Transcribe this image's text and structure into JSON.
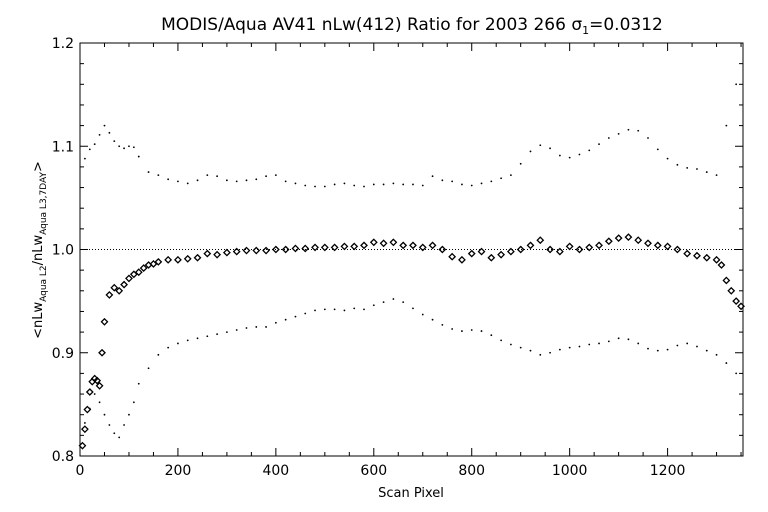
{
  "chart_data": {
    "type": "scatter",
    "title_text": "MODIS/Aqua AV41 nLw(412) Ratio for 2003 266 ",
    "title_sigma": "σ",
    "title_sigma_sub": "1",
    "title_value": "=0.0312",
    "xlabel": "Scan Pixel",
    "ylabel": {
      "prefix": "<nLw",
      "sub1": "Aqua L2",
      "middle": "/nLw",
      "sub2": "Aqua L3,7DAY",
      "suffix": ">"
    },
    "xlim": [
      0,
      1354
    ],
    "ylim": [
      0.8,
      1.2
    ],
    "x_ticks": [
      0,
      200,
      400,
      600,
      800,
      1000,
      1200
    ],
    "x_tick_labels": [
      "0",
      "200",
      "400",
      "600",
      "800",
      "1000",
      "1200"
    ],
    "y_ticks": [
      0.8,
      0.9,
      1.0,
      1.1,
      1.2
    ],
    "y_tick_labels": [
      "0.8",
      "0.9",
      "1.0",
      "1.1",
      "1.2"
    ],
    "reference_line": 1.0,
    "series": [
      {
        "role": "mean",
        "marker": "diamond",
        "x": [
          5,
          10,
          15,
          20,
          25,
          30,
          35,
          40,
          45,
          50,
          60,
          70,
          80,
          90,
          100,
          110,
          120,
          130,
          140,
          150,
          160,
          180,
          200,
          220,
          240,
          260,
          280,
          300,
          320,
          340,
          360,
          380,
          400,
          420,
          440,
          460,
          480,
          500,
          520,
          540,
          560,
          580,
          600,
          620,
          640,
          660,
          680,
          700,
          720,
          740,
          760,
          780,
          800,
          820,
          840,
          860,
          880,
          900,
          920,
          940,
          960,
          980,
          1000,
          1020,
          1040,
          1060,
          1080,
          1100,
          1120,
          1140,
          1160,
          1180,
          1200,
          1220,
          1240,
          1260,
          1280,
          1300,
          1310,
          1320,
          1330,
          1340,
          1350
        ],
        "y": [
          0.81,
          0.826,
          0.845,
          0.862,
          0.872,
          0.875,
          0.873,
          0.868,
          0.9,
          0.93,
          0.956,
          0.963,
          0.96,
          0.966,
          0.972,
          0.976,
          0.978,
          0.982,
          0.985,
          0.986,
          0.988,
          0.99,
          0.99,
          0.991,
          0.992,
          0.996,
          0.995,
          0.997,
          0.998,
          0.999,
          0.999,
          0.999,
          1.0,
          1.0,
          1.001,
          1.001,
          1.002,
          1.002,
          1.002,
          1.003,
          1.003,
          1.004,
          1.007,
          1.006,
          1.007,
          1.004,
          1.004,
          1.002,
          1.004,
          1.0,
          0.993,
          0.99,
          0.996,
          0.998,
          0.992,
          0.995,
          0.998,
          1.0,
          1.004,
          1.009,
          1.0,
          0.998,
          1.003,
          1.0,
          1.002,
          1.004,
          1.008,
          1.011,
          1.012,
          1.009,
          1.006,
          1.004,
          1.003,
          1.0,
          0.996,
          0.994,
          0.992,
          0.99,
          0.985,
          0.97,
          0.96,
          0.95,
          0.945
        ]
      },
      {
        "role": "upper",
        "marker": "dot",
        "x": [
          10,
          20,
          30,
          40,
          50,
          60,
          70,
          80,
          90,
          100,
          110,
          120,
          140,
          160,
          180,
          200,
          220,
          240,
          260,
          280,
          300,
          320,
          340,
          360,
          380,
          400,
          420,
          440,
          460,
          480,
          500,
          520,
          540,
          560,
          580,
          600,
          620,
          640,
          660,
          680,
          700,
          720,
          740,
          760,
          780,
          800,
          820,
          840,
          860,
          880,
          900,
          920,
          940,
          960,
          980,
          1000,
          1020,
          1040,
          1060,
          1080,
          1100,
          1120,
          1140,
          1160,
          1180,
          1200,
          1220,
          1240,
          1260,
          1280,
          1300,
          1320,
          1340
        ],
        "y": [
          1.088,
          1.097,
          1.102,
          1.111,
          1.12,
          1.113,
          1.105,
          1.1,
          1.098,
          1.1,
          1.099,
          1.09,
          1.075,
          1.072,
          1.068,
          1.066,
          1.064,
          1.067,
          1.072,
          1.071,
          1.067,
          1.066,
          1.067,
          1.068,
          1.071,
          1.072,
          1.066,
          1.064,
          1.062,
          1.061,
          1.061,
          1.063,
          1.064,
          1.062,
          1.061,
          1.063,
          1.063,
          1.064,
          1.063,
          1.063,
          1.062,
          1.071,
          1.067,
          1.066,
          1.063,
          1.062,
          1.064,
          1.066,
          1.069,
          1.072,
          1.083,
          1.095,
          1.101,
          1.098,
          1.091,
          1.089,
          1.092,
          1.096,
          1.102,
          1.108,
          1.112,
          1.116,
          1.115,
          1.108,
          1.097,
          1.088,
          1.082,
          1.079,
          1.078,
          1.075,
          1.072,
          1.12,
          1.16
        ]
      },
      {
        "role": "lower",
        "marker": "dot",
        "x": [
          10,
          20,
          30,
          40,
          50,
          60,
          70,
          80,
          90,
          100,
          110,
          120,
          140,
          160,
          180,
          200,
          220,
          240,
          260,
          280,
          300,
          320,
          340,
          360,
          380,
          400,
          420,
          440,
          460,
          480,
          500,
          520,
          540,
          560,
          580,
          600,
          620,
          640,
          660,
          680,
          700,
          720,
          740,
          760,
          780,
          800,
          820,
          840,
          860,
          880,
          900,
          920,
          940,
          960,
          980,
          1000,
          1020,
          1040,
          1060,
          1080,
          1100,
          1120,
          1140,
          1160,
          1180,
          1200,
          1220,
          1240,
          1260,
          1280,
          1300,
          1320,
          1340
        ],
        "y": [
          0.832,
          0.846,
          0.86,
          0.852,
          0.84,
          0.83,
          0.822,
          0.818,
          0.83,
          0.84,
          0.852,
          0.87,
          0.885,
          0.898,
          0.905,
          0.909,
          0.912,
          0.914,
          0.916,
          0.918,
          0.92,
          0.922,
          0.924,
          0.925,
          0.925,
          0.929,
          0.932,
          0.935,
          0.938,
          0.941,
          0.942,
          0.942,
          0.941,
          0.943,
          0.942,
          0.946,
          0.949,
          0.952,
          0.949,
          0.943,
          0.937,
          0.932,
          0.927,
          0.923,
          0.921,
          0.922,
          0.921,
          0.917,
          0.912,
          0.908,
          0.905,
          0.902,
          0.898,
          0.9,
          0.903,
          0.905,
          0.906,
          0.908,
          0.909,
          0.911,
          0.914,
          0.913,
          0.909,
          0.904,
          0.902,
          0.903,
          0.907,
          0.909,
          0.906,
          0.902,
          0.898,
          0.89,
          0.88
        ]
      }
    ]
  }
}
